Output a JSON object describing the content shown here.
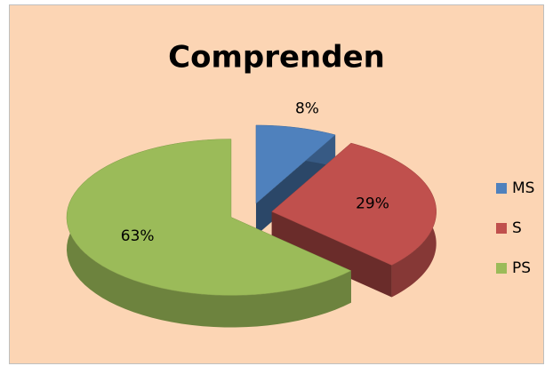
{
  "chart_data": {
    "type": "pie",
    "title": "Comprenden",
    "categories": [
      "MS",
      "S",
      "PS"
    ],
    "values": [
      8,
      29,
      63
    ],
    "value_labels": [
      "8%",
      "29%",
      "63%"
    ],
    "colors": [
      "#4f81bd",
      "#c0504d",
      "#9bbb59"
    ],
    "legend": "right"
  }
}
